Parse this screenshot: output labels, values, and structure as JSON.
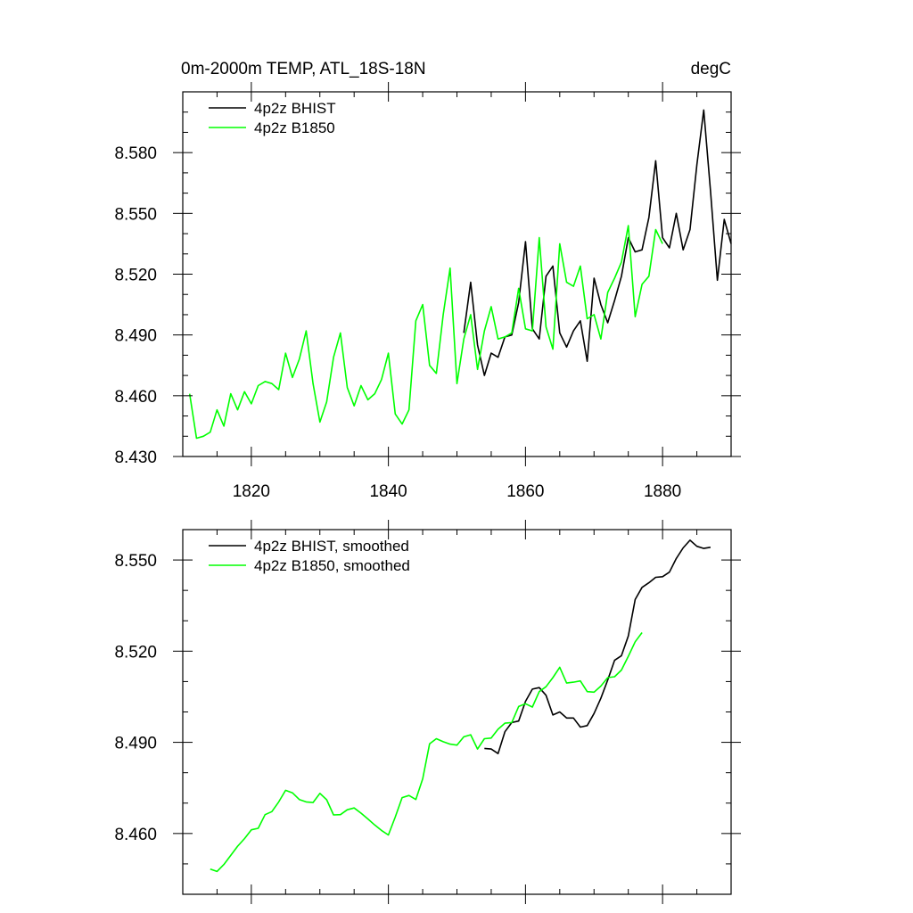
{
  "chart_data": [
    {
      "type": "line",
      "title": "0m-2000m TEMP, ATL_18S-18N",
      "units": "degC",
      "xlabel": "",
      "ylabel": "",
      "xlim": [
        1810,
        1890
      ],
      "ylim": [
        8.43,
        8.61
      ],
      "xticks": [
        1820,
        1840,
        1860,
        1880
      ],
      "xtick_labels": [
        "1820",
        "1840",
        "1860",
        "1880"
      ],
      "yticks": [
        8.43,
        8.46,
        8.49,
        8.52,
        8.55,
        8.58
      ],
      "ytick_labels": [
        "8.430",
        "8.460",
        "8.490",
        "8.520",
        "8.550",
        "8.580"
      ],
      "legend_position": "top-left",
      "series": [
        {
          "name": "4p2z BHIST",
          "color": "#000000",
          "x": [
            1851,
            1852,
            1853,
            1854,
            1855,
            1856,
            1857,
            1858,
            1859,
            1860,
            1861,
            1862,
            1863,
            1864,
            1865,
            1866,
            1867,
            1868,
            1869,
            1870,
            1871,
            1872,
            1873,
            1874,
            1875,
            1876,
            1877,
            1878,
            1879,
            1880,
            1881,
            1882,
            1883,
            1884,
            1885,
            1886,
            1887,
            1888,
            1889,
            1890
          ],
          "values": [
            8.491,
            8.516,
            8.485,
            8.47,
            8.481,
            8.479,
            8.489,
            8.49,
            8.506,
            8.536,
            8.493,
            8.488,
            8.519,
            8.524,
            8.491,
            8.484,
            8.492,
            8.497,
            8.477,
            8.518,
            8.505,
            8.496,
            8.507,
            8.519,
            8.538,
            8.531,
            8.532,
            8.548,
            8.576,
            8.538,
            8.533,
            8.55,
            8.532,
            8.542,
            8.574,
            8.601,
            8.561,
            8.517,
            8.547,
            8.535
          ]
        },
        {
          "name": "4p2z B1850",
          "color": "#00ff00",
          "x": [
            1811,
            1812,
            1813,
            1814,
            1815,
            1816,
            1817,
            1818,
            1819,
            1820,
            1821,
            1822,
            1823,
            1824,
            1825,
            1826,
            1827,
            1828,
            1829,
            1830,
            1831,
            1832,
            1833,
            1834,
            1835,
            1836,
            1837,
            1838,
            1839,
            1840,
            1841,
            1842,
            1843,
            1844,
            1845,
            1846,
            1847,
            1848,
            1849,
            1850,
            1851,
            1852,
            1853,
            1854,
            1855,
            1856,
            1857,
            1858,
            1859,
            1860,
            1861,
            1862,
            1863,
            1864,
            1865,
            1866,
            1867,
            1868,
            1869,
            1870,
            1871,
            1872,
            1873,
            1874,
            1875,
            1876,
            1877,
            1878,
            1879,
            1880
          ],
          "values": [
            8.461,
            8.439,
            8.44,
            8.442,
            8.453,
            8.445,
            8.461,
            8.453,
            8.462,
            8.456,
            8.465,
            8.467,
            8.466,
            8.463,
            8.481,
            8.469,
            8.478,
            8.492,
            8.466,
            8.447,
            8.457,
            8.479,
            8.491,
            8.464,
            8.455,
            8.465,
            8.458,
            8.461,
            8.468,
            8.481,
            8.451,
            8.446,
            8.453,
            8.497,
            8.505,
            8.475,
            8.471,
            8.5,
            8.523,
            8.466,
            8.488,
            8.5,
            8.473,
            8.492,
            8.504,
            8.488,
            8.489,
            8.491,
            8.513,
            8.493,
            8.492,
            8.538,
            8.494,
            8.483,
            8.535,
            8.516,
            8.514,
            8.524,
            8.498,
            8.5,
            8.488,
            8.511,
            8.518,
            8.526,
            8.544,
            8.499,
            8.515,
            8.519,
            8.542,
            8.535
          ]
        }
      ]
    },
    {
      "type": "line",
      "title": "",
      "xlabel": "",
      "ylabel": "",
      "xlim": [
        1810,
        1890
      ],
      "ylim": [
        8.44,
        8.56
      ],
      "xticks": [
        1820,
        1840,
        1860,
        1880
      ],
      "xtick_labels": [],
      "yticks": [
        8.46,
        8.49,
        8.52,
        8.55
      ],
      "ytick_labels": [
        "8.460",
        "8.490",
        "8.520",
        "8.550"
      ],
      "legend_position": "top-left",
      "series": [
        {
          "name": "4p2z BHIST, smoothed",
          "color": "#000000",
          "x": [
            1854,
            1855,
            1856,
            1857,
            1858,
            1859,
            1860,
            1861,
            1862,
            1863,
            1864,
            1865,
            1866,
            1867,
            1868,
            1869,
            1870,
            1871,
            1872,
            1873,
            1874,
            1875,
            1876,
            1877,
            1878,
            1879,
            1880,
            1881,
            1882,
            1883,
            1884,
            1885,
            1886,
            1887
          ],
          "values": [
            8.488,
            8.4878,
            8.4863,
            8.4935,
            8.4965,
            8.497,
            8.5035,
            8.5075,
            8.508,
            8.5055,
            8.499,
            8.5,
            8.498,
            8.498,
            8.495,
            8.4955,
            8.4995,
            8.5045,
            8.5105,
            8.517,
            8.5185,
            8.525,
            8.537,
            8.541,
            8.5425,
            8.5443,
            8.5445,
            8.546,
            8.5505,
            8.554,
            8.5565,
            8.5545,
            8.5538,
            8.5542
          ]
        },
        {
          "name": "4p2z B1850, smoothed",
          "color": "#00ff00",
          "x": [
            1814,
            1815,
            1816,
            1817,
            1818,
            1819,
            1820,
            1821,
            1822,
            1823,
            1824,
            1825,
            1826,
            1827,
            1828,
            1829,
            1830,
            1831,
            1832,
            1833,
            1834,
            1835,
            1836,
            1837,
            1838,
            1839,
            1840,
            1841,
            1842,
            1843,
            1844,
            1845,
            1846,
            1847,
            1848,
            1849,
            1850,
            1851,
            1852,
            1853,
            1854,
            1855,
            1856,
            1857,
            1858,
            1859,
            1860,
            1861,
            1862,
            1863,
            1864,
            1865,
            1866,
            1867,
            1868,
            1869,
            1870,
            1871,
            1872,
            1873,
            1874,
            1875,
            1876,
            1877
          ],
          "values": [
            8.4483,
            8.4475,
            8.4498,
            8.4528,
            8.4558,
            8.4583,
            8.4612,
            8.4617,
            8.4662,
            8.4672,
            8.4704,
            8.4742,
            8.4734,
            8.4712,
            8.4704,
            8.4702,
            8.4732,
            8.4711,
            8.4661,
            8.4662,
            8.4678,
            8.4684,
            8.4667,
            8.4648,
            8.4628,
            8.461,
            8.4595,
            8.4654,
            8.4718,
            8.4725,
            8.4712,
            8.478,
            8.4895,
            8.4912,
            8.4902,
            8.4894,
            8.4891,
            8.4918,
            8.4925,
            8.4878,
            8.4912,
            8.4914,
            8.4943,
            8.4963,
            8.4965,
            8.5018,
            8.5027,
            8.5016,
            8.5067,
            8.5083,
            8.5113,
            8.5147,
            8.5095,
            8.5098,
            8.5102,
            8.5067,
            8.5065,
            8.5085,
            8.5113,
            8.5116,
            8.5138,
            8.5183,
            8.5231,
            8.5261
          ]
        }
      ]
    }
  ]
}
